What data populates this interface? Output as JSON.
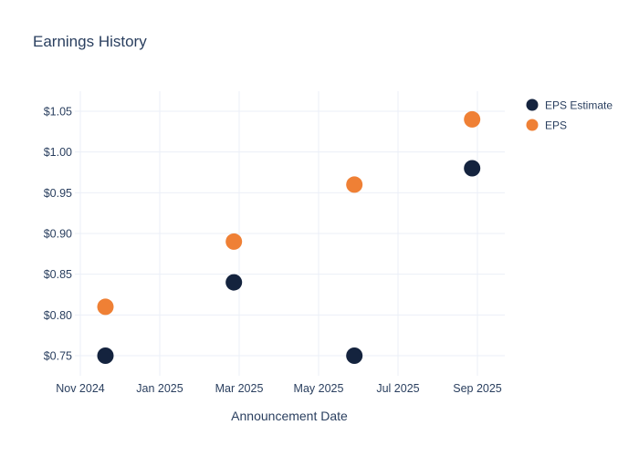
{
  "title": "Earnings History",
  "x_axis": {
    "title": "Announcement Date",
    "ticks": [
      "Nov 2024",
      "Jan 2025",
      "Mar 2025",
      "May 2025",
      "Jul 2025",
      "Sep 2025"
    ]
  },
  "y_axis": {
    "ticks": [
      "$0.75",
      "$0.80",
      "$0.85",
      "$0.90",
      "$0.95",
      "$1.00",
      "$1.05"
    ]
  },
  "legend": {
    "items": [
      {
        "label": "EPS Estimate",
        "color": "#14233e"
      },
      {
        "label": "EPS",
        "color": "#ef8035"
      }
    ]
  },
  "colors": {
    "text": "#2a3f5f",
    "grid": "#ebeff7",
    "background": "#ffffff",
    "eps_estimate": "#14233e",
    "eps": "#ef8035"
  },
  "chart_data": {
    "type": "scatter",
    "title": "Earnings History",
    "xlabel": "Announcement Date",
    "ylabel": "",
    "x_tick_labels": [
      "Nov 2024",
      "Jan 2025",
      "Mar 2025",
      "May 2025",
      "Jul 2025",
      "Sep 2025"
    ],
    "y_tick_values": [
      0.75,
      0.8,
      0.85,
      0.9,
      0.95,
      1.0,
      1.05
    ],
    "y_tick_labels": [
      "$0.75",
      "$0.80",
      "$0.85",
      "$0.90",
      "$0.95",
      "$1.00",
      "$1.05"
    ],
    "ylim": [
      0.725,
      1.075
    ],
    "grid": true,
    "legend_position": "top-right",
    "marker_size_px": 18,
    "series": [
      {
        "name": "EPS Estimate",
        "color": "#14233e",
        "points": [
          {
            "date": "2024-11-20",
            "value": 0.75
          },
          {
            "date": "2025-02-27",
            "value": 0.84
          },
          {
            "date": "2025-05-28",
            "value": 0.75
          },
          {
            "date": "2025-08-27",
            "value": 0.98
          }
        ]
      },
      {
        "name": "EPS",
        "color": "#ef8035",
        "points": [
          {
            "date": "2024-11-20",
            "value": 0.81
          },
          {
            "date": "2025-02-27",
            "value": 0.89
          },
          {
            "date": "2025-05-28",
            "value": 0.96
          },
          {
            "date": "2025-08-27",
            "value": 1.04
          }
        ]
      }
    ]
  }
}
